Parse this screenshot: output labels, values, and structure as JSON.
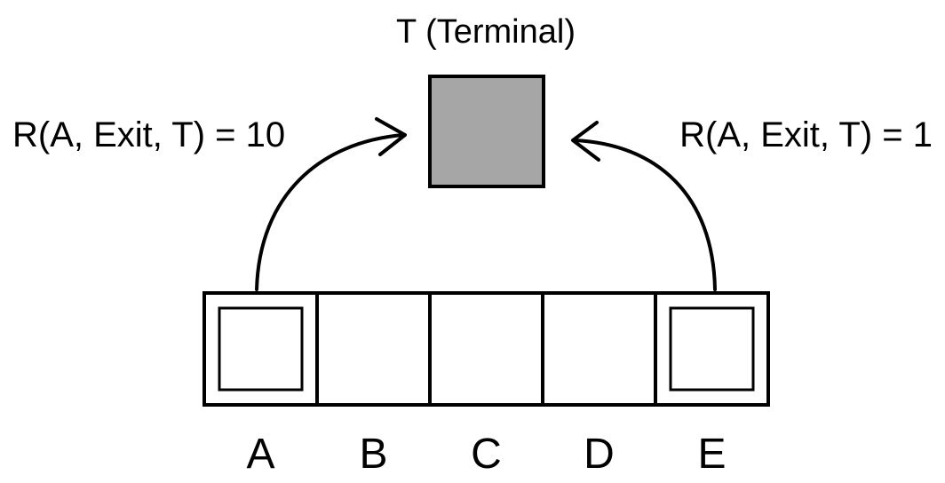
{
  "terminal": {
    "label": "T (Terminal)",
    "fill_color": "#a6a6a6"
  },
  "transitions": {
    "left_reward": "R(A, Exit, T) = 10",
    "right_reward": "R(A, Exit, T) = 1"
  },
  "states": [
    {
      "label": "A",
      "exit_state": true
    },
    {
      "label": "B",
      "exit_state": false
    },
    {
      "label": "C",
      "exit_state": false
    },
    {
      "label": "D",
      "exit_state": false
    },
    {
      "label": "E",
      "exit_state": true
    }
  ]
}
